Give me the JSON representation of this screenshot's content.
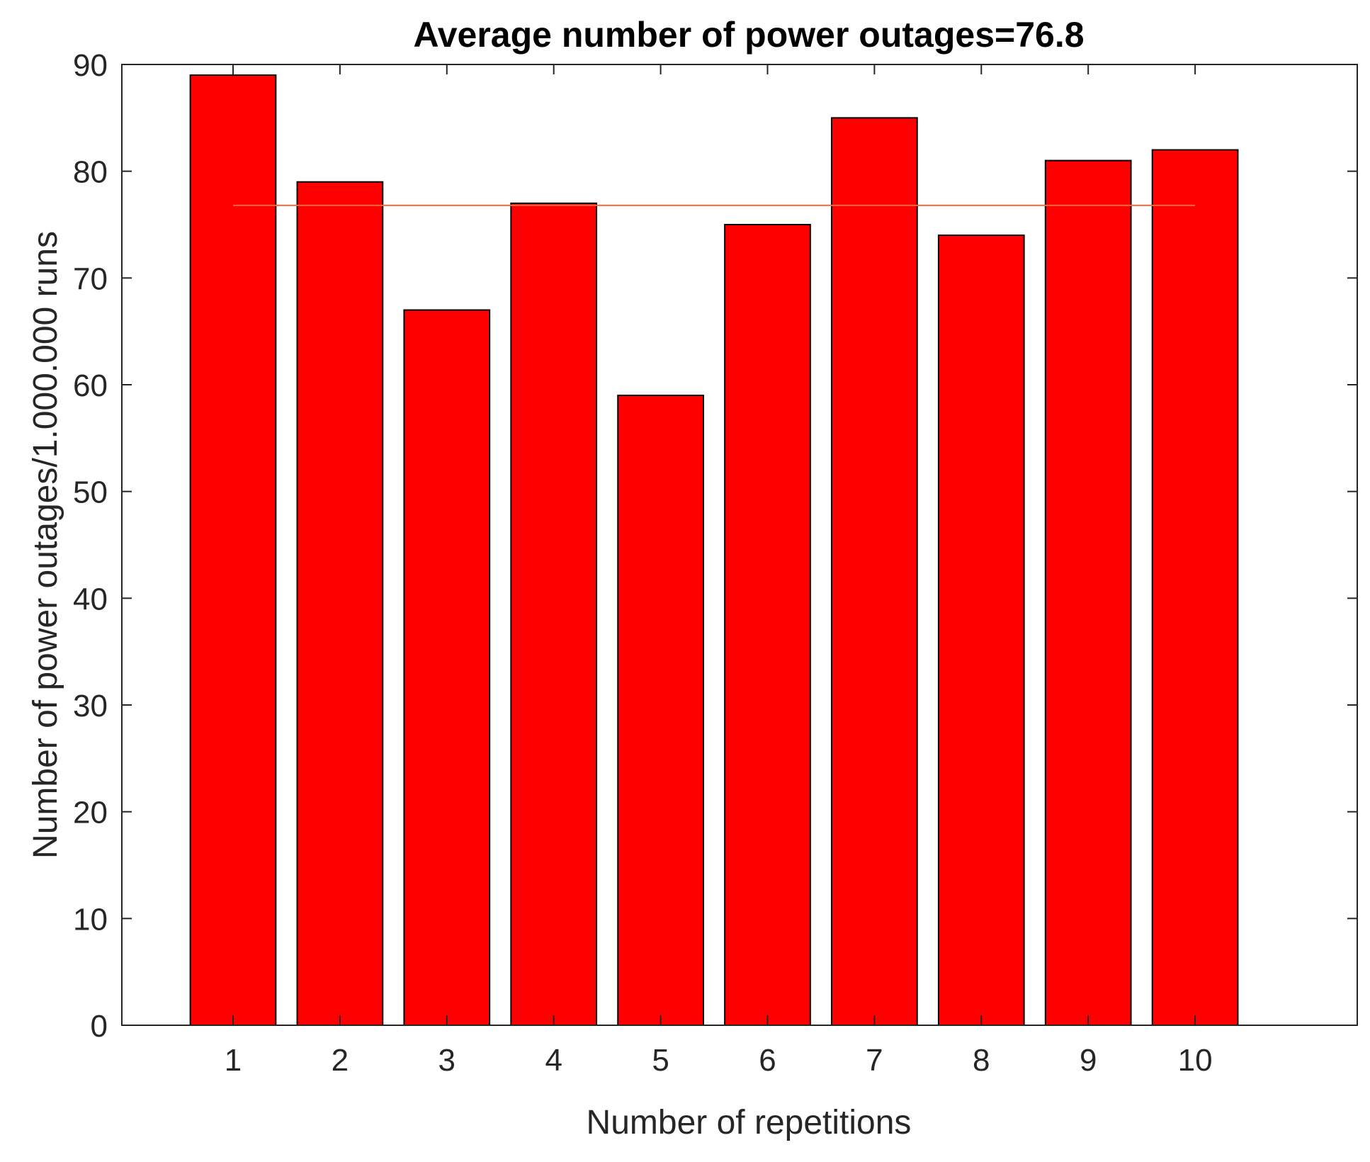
{
  "chart_data": {
    "type": "bar",
    "title": "Average number of power outages=76.8",
    "xlabel": "Number of repetitions",
    "ylabel": "Number of power outages/1.000.000 runs",
    "categories": [
      "1",
      "2",
      "3",
      "4",
      "5",
      "6",
      "7",
      "8",
      "9",
      "10"
    ],
    "values": [
      89,
      79,
      67,
      77,
      59,
      75,
      85,
      74,
      81,
      82
    ],
    "average_line": {
      "value": 76.8,
      "x_from": 1,
      "x_to": 10,
      "color": "#ff6a3d"
    },
    "ylim": [
      0,
      90
    ],
    "yticks": [
      "0",
      "10",
      "20",
      "30",
      "40",
      "50",
      "60",
      "70",
      "80",
      "90"
    ],
    "bar_color": "#ff0000",
    "bar_edge_color": "#000000",
    "grid": false,
    "legend": "none"
  }
}
